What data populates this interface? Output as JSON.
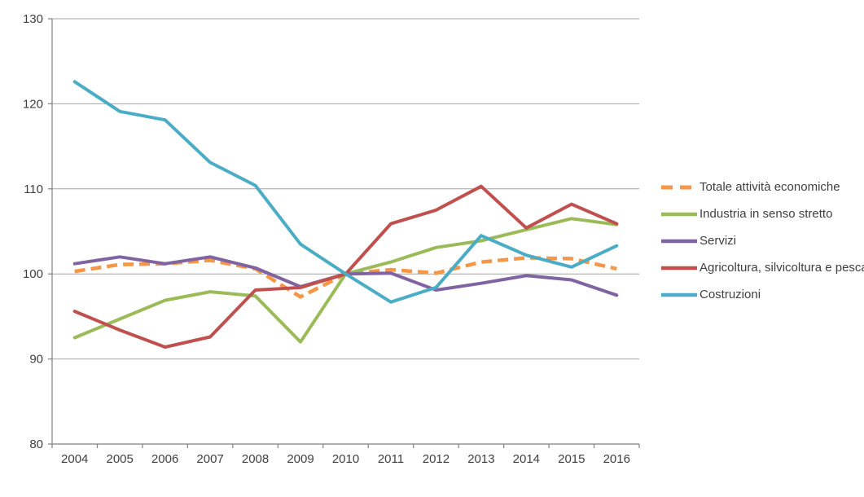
{
  "chart_data": {
    "type": "line",
    "title": "",
    "xlabel": "",
    "ylabel": "",
    "categories": [
      "2004",
      "2005",
      "2006",
      "2007",
      "2008",
      "2009",
      "2010",
      "2011",
      "2012",
      "2013",
      "2014",
      "2015",
      "2016"
    ],
    "y_axis": {
      "min": 80,
      "max": 130,
      "step": 10,
      "tick_labels": [
        "80",
        "90",
        "100",
        "110",
        "120",
        "130"
      ]
    },
    "grid": true,
    "legend_position": "right",
    "series": [
      {
        "name": "Totale attività economiche",
        "color": "#F79646",
        "dashed": true,
        "values": [
          100.3,
          101.1,
          101.2,
          101.6,
          100.6,
          97.3,
          100.0,
          100.5,
          100.1,
          101.4,
          101.9,
          101.8,
          100.6
        ]
      },
      {
        "name": "Industria in senso stretto",
        "color": "#9BBB59",
        "dashed": false,
        "values": [
          92.5,
          94.7,
          96.9,
          97.9,
          97.4,
          92.0,
          100.0,
          101.4,
          103.1,
          103.9,
          105.2,
          106.5,
          105.8
        ]
      },
      {
        "name": "Servizi",
        "color": "#8064A2",
        "dashed": false,
        "values": [
          101.2,
          102.0,
          101.2,
          102.0,
          100.7,
          98.5,
          100.0,
          100.1,
          98.1,
          98.9,
          99.8,
          99.3,
          97.5
        ]
      },
      {
        "name": "Agricoltura, silvicoltura e pesca",
        "color": "#C0504D",
        "dashed": false,
        "values": [
          95.6,
          93.4,
          91.4,
          92.6,
          98.1,
          98.4,
          100.0,
          105.9,
          107.5,
          110.3,
          105.4,
          108.2,
          105.9
        ]
      },
      {
        "name": "Costruzioni",
        "color": "#4BACC6",
        "dashed": false,
        "values": [
          122.6,
          119.1,
          118.1,
          113.1,
          110.4,
          103.5,
          100.0,
          96.7,
          98.4,
          104.5,
          102.2,
          100.8,
          103.3
        ]
      }
    ]
  },
  "style_colors": {
    "background": "#FFFFFF",
    "axis": "#7F7F7F",
    "gridline": "#A3A3A3",
    "text": "#3F3F3F"
  }
}
